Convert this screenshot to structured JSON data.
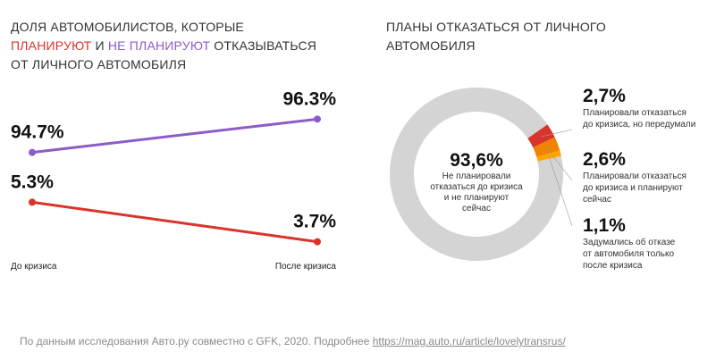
{
  "chart_data": [
    {
      "type": "line",
      "title": {
        "line1": "Доля автомобилистов, которые",
        "plan": "планируют",
        "and": " и ",
        "noplan": "не планируют",
        "rest": " отказываться",
        "line3": "от личного автомобиля"
      },
      "categories": [
        "До кризиса",
        "После кризиса"
      ],
      "series": [
        {
          "name": "не планируют",
          "values": [
            94.7,
            96.3
          ],
          "labels": [
            "94.7%",
            "96.3%"
          ],
          "color": "#8c5cc9"
        },
        {
          "name": "планируют",
          "values": [
            5.3,
            3.7
          ],
          "labels": [
            "5.3%",
            "3.7%"
          ],
          "color": "#d9342b"
        }
      ]
    },
    {
      "type": "pie",
      "title": {
        "line1": "Планы отказаться от личного",
        "line2": "автомобиля"
      },
      "slices": [
        {
          "name": "Не планировали отказаться до кризиса и не планируют сейчас",
          "value": 93.6,
          "label": "93,6%",
          "color": "#d4d4d4",
          "desc": [
            "Не планировали",
            "отказаться до кризиса",
            "и не планируют",
            "сейчас"
          ]
        },
        {
          "name": "Планировали отказаться до кризиса, но передумали",
          "value": 2.7,
          "label": "2,7%",
          "color": "#d9342b",
          "desc": [
            "Планировали отказаться",
            "до кризиса, но передумали"
          ]
        },
        {
          "name": "Планировали отказаться до кризиса и планируют сейчас",
          "value": 2.6,
          "label": "2,6%",
          "color": "#f08300",
          "desc": [
            "Планировали отказаться",
            "до кризиса и планируют",
            "сейчас"
          ]
        },
        {
          "name": "Задумались об отказе от автомобиля только после кризиса",
          "value": 1.1,
          "label": "1,1%",
          "color": "#ffa500",
          "desc": [
            "Задумались об отказе",
            "от автомобиля только",
            "после кризиса"
          ]
        }
      ]
    }
  ],
  "footer": {
    "text": "По данным исследования Авто.ру совместно с GFK, 2020. Подробнее ",
    "link": "https://mag.auto.ru/article/lovelytransrus/"
  }
}
